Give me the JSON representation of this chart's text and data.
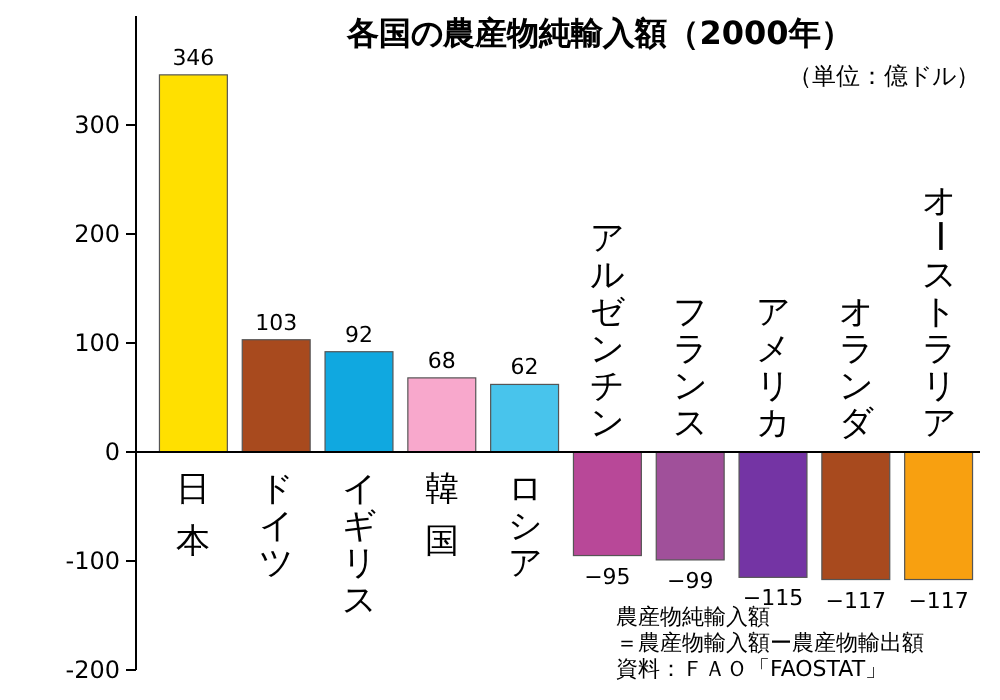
{
  "chart_data": {
    "type": "bar",
    "title": "各国の農産物純輸入額（2000年）",
    "subtitle": "（単位：億ドル）",
    "categories": [
      "日本",
      "ドイツ",
      "イギリス",
      "韓国",
      "ロシア",
      "アルゼンチン",
      "フランス",
      "アメリカ",
      "オランダ",
      "オーストラリア"
    ],
    "values": [
      346,
      103,
      92,
      68,
      62,
      -95,
      -99,
      -115,
      -117,
      -117
    ],
    "colors": [
      "#ffe000",
      "#a84a1e",
      "#10a8e0",
      "#f8a8cc",
      "#48c4ec",
      "#b84898",
      "#a0509a",
      "#7434a4",
      "#a84a1e",
      "#f8a010"
    ],
    "ylim": [
      -200,
      400
    ],
    "yticks": [
      -200,
      -100,
      0,
      100,
      200,
      300
    ],
    "data_labels": true,
    "grid": false,
    "annotations": [
      "農産物純輸入額",
      "＝農産物輸入額ー農産物輸出額",
      "資料：ＦＡＯ「FAOSTAT」"
    ]
  }
}
